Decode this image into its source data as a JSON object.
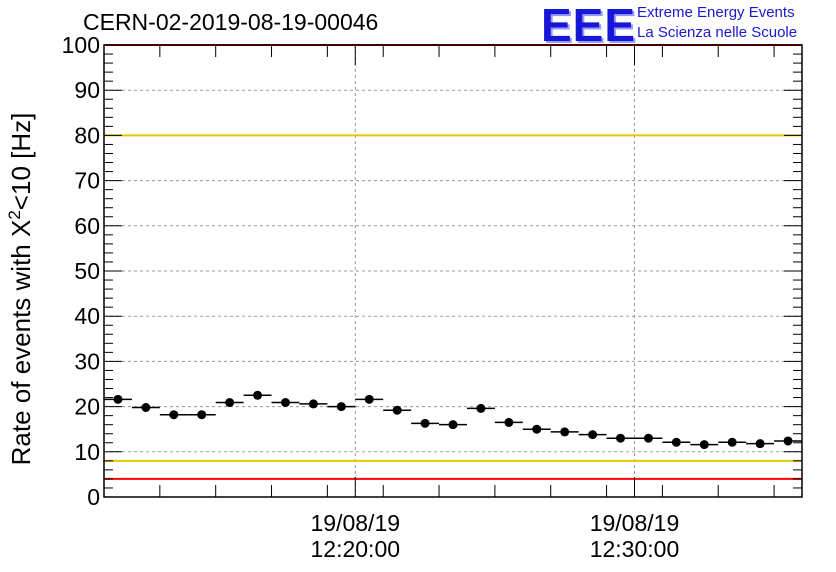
{
  "header": {
    "run_title": "CERN-02-2019-08-19-00046"
  },
  "logo": {
    "mark": "EEE",
    "line1": "Extreme Energy Events",
    "line2": "La Scienza nelle Scuole",
    "color": "#1717d8"
  },
  "chart_data": {
    "type": "scatter",
    "ylabel": "Rate of events with X²<10 [Hz]",
    "ylim": [
      0,
      100
    ],
    "yticks": [
      0,
      10,
      20,
      30,
      40,
      50,
      60,
      70,
      80,
      90,
      100
    ],
    "xlim": [
      "2019-08-19 12:11:00",
      "2019-08-19 12:36:00"
    ],
    "xticks": [
      {
        "date": "19/08/19",
        "time": "12:20:00",
        "at": "2019-08-19 12:20:00"
      },
      {
        "date": "19/08/19",
        "time": "12:30:00",
        "at": "2019-08-19 12:30:00"
      }
    ],
    "grid": true,
    "reference_lines": [
      {
        "y": 100,
        "color": "#ff0000"
      },
      {
        "y": 80,
        "color": "#e8c800"
      },
      {
        "y": 8,
        "color": "#e8c800"
      },
      {
        "y": 4,
        "color": "#ff0000"
      }
    ],
    "series": [
      {
        "marker_color": "#000000",
        "bin_width_s": 60,
        "points": [
          {
            "t": "2019-08-19 12:11:30",
            "y": 21.6
          },
          {
            "t": "2019-08-19 12:12:30",
            "y": 19.8
          },
          {
            "t": "2019-08-19 12:13:30",
            "y": 18.2
          },
          {
            "t": "2019-08-19 12:14:30",
            "y": 18.2
          },
          {
            "t": "2019-08-19 12:15:30",
            "y": 20.9
          },
          {
            "t": "2019-08-19 12:16:30",
            "y": 22.5
          },
          {
            "t": "2019-08-19 12:17:30",
            "y": 20.9
          },
          {
            "t": "2019-08-19 12:18:30",
            "y": 20.6
          },
          {
            "t": "2019-08-19 12:19:30",
            "y": 20.0
          },
          {
            "t": "2019-08-19 12:20:30",
            "y": 21.6
          },
          {
            "t": "2019-08-19 12:21:30",
            "y": 19.2
          },
          {
            "t": "2019-08-19 12:22:30",
            "y": 16.3
          },
          {
            "t": "2019-08-19 12:23:30",
            "y": 16.0
          },
          {
            "t": "2019-08-19 12:24:30",
            "y": 19.6
          },
          {
            "t": "2019-08-19 12:25:30",
            "y": 16.5
          },
          {
            "t": "2019-08-19 12:26:30",
            "y": 15.0
          },
          {
            "t": "2019-08-19 12:27:30",
            "y": 14.4
          },
          {
            "t": "2019-08-19 12:28:30",
            "y": 13.8
          },
          {
            "t": "2019-08-19 12:29:30",
            "y": 13.0
          },
          {
            "t": "2019-08-19 12:30:30",
            "y": 13.0
          },
          {
            "t": "2019-08-19 12:31:30",
            "y": 12.1
          },
          {
            "t": "2019-08-19 12:32:30",
            "y": 11.6
          },
          {
            "t": "2019-08-19 12:33:30",
            "y": 12.1
          },
          {
            "t": "2019-08-19 12:34:30",
            "y": 11.8
          },
          {
            "t": "2019-08-19 12:35:30",
            "y": 12.4
          }
        ]
      }
    ]
  }
}
